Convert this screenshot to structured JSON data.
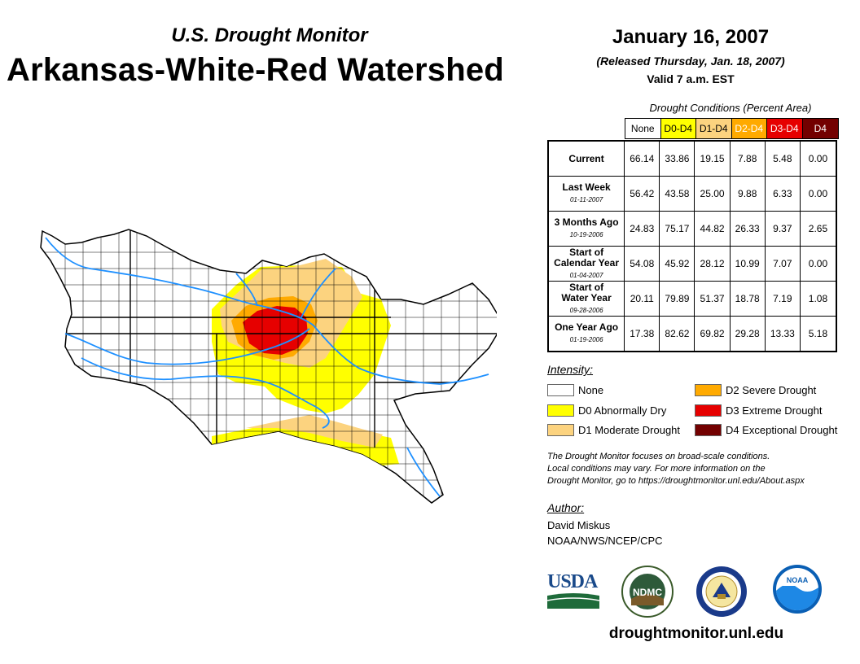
{
  "header": {
    "subtitle": "U.S. Drought Monitor",
    "title": "Arkansas-White-Red Watershed",
    "date": "January 16, 2007",
    "released": "(Released Thursday, Jan. 18, 2007)",
    "valid": "Valid 7 a.m. EST"
  },
  "table": {
    "caption": "Drought Conditions (Percent Area)",
    "columns": [
      {
        "label": "None",
        "color": "#ffffff",
        "text_color": "#000000"
      },
      {
        "label": "D0-D4",
        "color": "#ffff00",
        "text_color": "#000000"
      },
      {
        "label": "D1-D4",
        "color": "#fcd37f",
        "text_color": "#000000"
      },
      {
        "label": "D2-D4",
        "color": "#ffaa00",
        "text_color": "#ffffff"
      },
      {
        "label": "D3-D4",
        "color": "#e60000",
        "text_color": "#ffffff"
      },
      {
        "label": "D4",
        "color": "#730000",
        "text_color": "#ffffff"
      }
    ],
    "rows": [
      {
        "label": "Current",
        "date": "",
        "values": [
          "66.14",
          "33.86",
          "19.15",
          "7.88",
          "5.48",
          "0.00"
        ]
      },
      {
        "label": "Last Week",
        "date": "01-11-2007",
        "values": [
          "56.42",
          "43.58",
          "25.00",
          "9.88",
          "6.33",
          "0.00"
        ]
      },
      {
        "label": "3 Months Ago",
        "date": "10-19-2006",
        "values": [
          "24.83",
          "75.17",
          "44.82",
          "26.33",
          "9.37",
          "2.65"
        ]
      },
      {
        "label": "Start of Calendar Year",
        "date": "01-04-2007",
        "values": [
          "54.08",
          "45.92",
          "28.12",
          "10.99",
          "7.07",
          "0.00"
        ]
      },
      {
        "label": "Start of Water Year",
        "date": "09-28-2006",
        "values": [
          "20.11",
          "79.89",
          "51.37",
          "18.78",
          "7.19",
          "1.08"
        ]
      },
      {
        "label": "One Year Ago",
        "date": "01-19-2006",
        "values": [
          "17.38",
          "82.62",
          "69.82",
          "29.28",
          "13.33",
          "5.18"
        ]
      }
    ]
  },
  "legend": {
    "title": "Intensity:",
    "items": [
      {
        "label": "None",
        "color": "#ffffff"
      },
      {
        "label": "D0 Abnormally Dry",
        "color": "#ffff00"
      },
      {
        "label": "D1 Moderate Drought",
        "color": "#fcd37f"
      },
      {
        "label": "D2 Severe Drought",
        "color": "#ffaa00"
      },
      {
        "label": "D3 Extreme Drought",
        "color": "#e60000"
      },
      {
        "label": "D4 Exceptional Drought",
        "color": "#730000"
      }
    ]
  },
  "note": {
    "line1": "The Drought Monitor focuses on broad-scale conditions.",
    "line2": "Local conditions may vary. For more information on the",
    "line3": "Drought Monitor, go to https://droughtmonitor.unl.edu/About.aspx"
  },
  "author": {
    "title": "Author:",
    "name": "David Miskus",
    "org": "NOAA/NWS/NCEP/CPC"
  },
  "logos": {
    "usda": "USDA",
    "ndmc": "NDMC",
    "noaa": "NOAA"
  },
  "footer": {
    "url": "droughtmonitor.unl.edu"
  },
  "colors": {
    "river": "#1e90ff",
    "border": "#000000"
  }
}
